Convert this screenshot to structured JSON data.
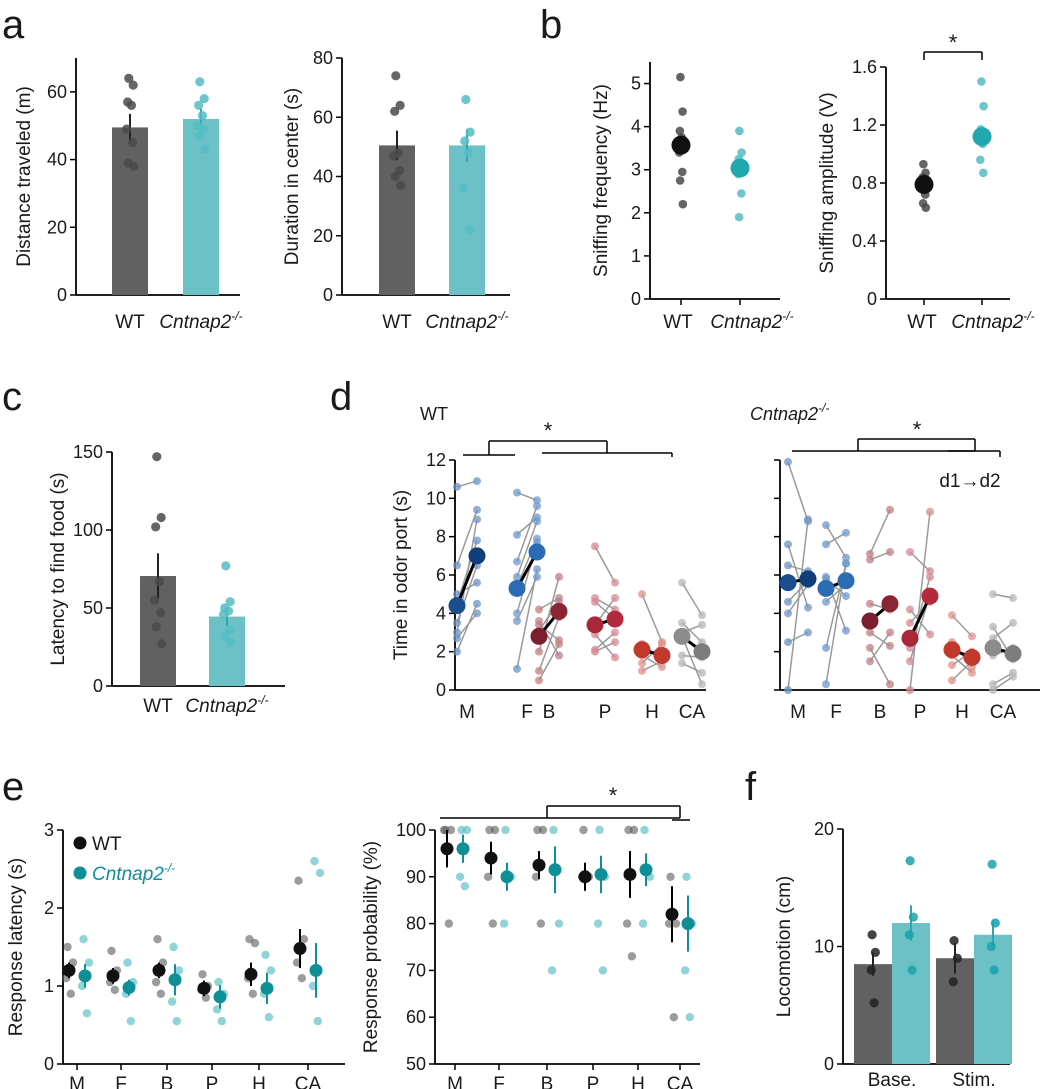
{
  "colors": {
    "wt": "#616161",
    "wt_dot": "#4a4a4a",
    "ko": "#6cc1c6",
    "ko_dot": "#55bcc3",
    "teal": "#0f8f96",
    "black": "#111111",
    "odor": {
      "M": {
        "d1": "#1a4e8c",
        "d2": "#0f3e7a",
        "light": "#6f93c4"
      },
      "F": {
        "d1": "#2a6bb3",
        "d2": "#2a6bb3",
        "light": "#6f98cc"
      },
      "B": {
        "d1": "#7a1f2e",
        "d2": "#8a2433",
        "light": "#c27d86"
      },
      "P": {
        "d1": "#a8283a",
        "d2": "#b12b3d",
        "light": "#d48a92"
      },
      "H": {
        "d1": "#c0392b",
        "d2": "#c0392b",
        "light": "#e0918a"
      },
      "CA": {
        "d1": "#8c8c8c",
        "d2": "#7d7d7d",
        "light": "#b7b7b7"
      }
    }
  },
  "panel_labels": {
    "a": "a",
    "b": "b",
    "c": "c",
    "d": "d",
    "e": "e",
    "f": "f"
  },
  "groups": {
    "wt": "WT",
    "ko_base": "Cntnap2",
    "ko_sup": "-/-"
  },
  "chart_data": [
    {
      "id": "a1",
      "type": "bar",
      "ylabel": "Distance traveled (m)",
      "ylim": [
        0,
        70
      ],
      "yticks": [
        "0",
        "20",
        "40",
        "60"
      ],
      "categories": [
        "WT",
        "Cntnap2-/-"
      ],
      "values": [
        49.5,
        52
      ],
      "sem": [
        4,
        3
      ],
      "points": [
        [
          64,
          62,
          57,
          56,
          49,
          45,
          39,
          38
        ],
        [
          63,
          58,
          56,
          53,
          50,
          49,
          47,
          43
        ]
      ]
    },
    {
      "id": "a2",
      "type": "bar",
      "ylabel": "Duration in center (s)",
      "ylim": [
        0,
        80
      ],
      "yticks": [
        "0",
        "20",
        "40",
        "60",
        "80"
      ],
      "categories": [
        "WT",
        "Cntnap2-/-"
      ],
      "values": [
        50.5,
        50.5
      ],
      "sem": [
        5,
        5.5
      ],
      "points": [
        [
          74,
          64,
          62,
          48,
          47,
          42,
          40,
          37
        ],
        [
          66,
          55,
          52,
          48,
          36,
          22
        ]
      ]
    },
    {
      "id": "b1",
      "type": "scatter",
      "ylabel": "Sniffing frequency (Hz)",
      "ylim": [
        0,
        5.5
      ],
      "yticks": [
        "0",
        "1",
        "2",
        "3",
        "4",
        "5"
      ],
      "categories": [
        "WT",
        "Cntnap2-/-"
      ],
      "means": [
        3.57,
        3.04
      ],
      "points": [
        [
          5.15,
          4.35,
          3.9,
          3.75,
          3.4,
          2.95,
          2.75,
          2.2
        ],
        [
          3.9,
          3.4,
          3.25,
          3.05,
          2.9,
          2.45,
          1.9
        ]
      ]
    },
    {
      "id": "b2",
      "type": "scatter",
      "ylabel": "Sniffing amplitude (V)",
      "ylim": [
        0,
        1.6
      ],
      "yticks": [
        "0",
        "0.4",
        "0.8",
        "1.2",
        "1.6"
      ],
      "categories": [
        "WT",
        "Cntnap2-/-"
      ],
      "means": [
        0.79,
        1.12
      ],
      "points": [
        [
          0.93,
          0.87,
          0.84,
          0.79,
          0.77,
          0.72,
          0.66,
          0.63
        ],
        [
          1.5,
          1.33,
          1.17,
          1.07,
          0.96,
          0.87
        ]
      ],
      "significance": "*"
    },
    {
      "id": "c",
      "type": "bar",
      "ylabel": "Latency to find food (s)",
      "ylim": [
        0,
        150
      ],
      "yticks": [
        "0",
        "50",
        "100",
        "150"
      ],
      "categories": [
        "WT",
        "Cntnap2-/-"
      ],
      "values": [
        70.5,
        44.5
      ],
      "sem": [
        14.5,
        6
      ],
      "points": [
        [
          147,
          108,
          102,
          67,
          55,
          47,
          38,
          27
        ],
        [
          77,
          54,
          50,
          48,
          46,
          36,
          32,
          28
        ]
      ]
    },
    {
      "id": "d1",
      "type": "scatter",
      "subtitle": "WT",
      "ylabel": "Time in odor port (s)",
      "ylim": [
        0,
        12
      ],
      "yticks": [
        "0",
        "2",
        "4",
        "6",
        "8",
        "10",
        "12"
      ],
      "categories": [
        "M",
        "F",
        "B",
        "P",
        "H",
        "CA"
      ],
      "series": [
        {
          "name": "d1",
          "values": [
            4.4,
            5.3,
            2.8,
            3.4,
            2.1,
            2.8
          ]
        },
        {
          "name": "d2",
          "values": [
            7.0,
            7.2,
            4.1,
            3.7,
            1.8,
            2.0
          ]
        }
      ],
      "pairs": [
        [
          [
            10.6,
            10.9
          ],
          [
            2.0,
            4.5
          ],
          [
            3.0,
            8.9
          ],
          [
            3.5,
            6.5
          ],
          [
            6.5,
            9.4
          ],
          [
            4.5,
            7.8
          ],
          [
            2.7,
            4.0
          ],
          [
            5.0,
            5.6
          ]
        ],
        [
          [
            10.3,
            9.9
          ],
          [
            1.1,
            6.3
          ],
          [
            4.0,
            7.7
          ],
          [
            6.7,
            9.6
          ],
          [
            5.4,
            7.9
          ],
          [
            8.1,
            9.0
          ],
          [
            3.6,
            5.9
          ],
          [
            5.9,
            8.8
          ]
        ],
        [
          [
            2.0,
            5.9
          ],
          [
            1.0,
            3.8
          ],
          [
            3.1,
            4.6
          ],
          [
            3.4,
            2.6
          ],
          [
            4.2,
            4.8
          ],
          [
            0.5,
            2.4
          ],
          [
            3.6,
            1.8
          ]
        ],
        [
          [
            7.5,
            5.6
          ],
          [
            4.8,
            4.2
          ],
          [
            3.4,
            4.8
          ],
          [
            2.1,
            3.0
          ],
          [
            2.9,
            1.7
          ],
          [
            4.6,
            3.7
          ],
          [
            2.0,
            2.5
          ]
        ],
        [
          [
            5.0,
            2.5
          ],
          [
            2.0,
            1.8
          ],
          [
            1.8,
            1.2
          ],
          [
            2.4,
            1.6
          ],
          [
            1.4,
            2.4
          ],
          [
            1.0,
            1.5
          ]
        ],
        [
          [
            5.6,
            3.9
          ],
          [
            3.5,
            2.5
          ],
          [
            2.8,
            0.3
          ],
          [
            1.4,
            0.9
          ],
          [
            3.0,
            3.4
          ],
          [
            2.6,
            2.2
          ],
          [
            1.8,
            1.7
          ]
        ]
      ],
      "significance": "*"
    },
    {
      "id": "d2",
      "type": "scatter",
      "subtitle": "Cntnap2-/-",
      "ylabel": "",
      "ylim": [
        0,
        12
      ],
      "categories": [
        "M",
        "F",
        "B",
        "P",
        "H",
        "CA"
      ],
      "annotation": "d1→d2",
      "series": [
        {
          "name": "d1",
          "values": [
            5.6,
            5.3,
            3.6,
            2.7,
            2.1,
            2.2
          ]
        },
        {
          "name": "d2",
          "values": [
            5.8,
            5.7,
            4.5,
            4.9,
            1.7,
            1.9
          ]
        }
      ],
      "pairs": [
        [
          [
            11.9,
            8.8
          ],
          [
            0.0,
            8.9
          ],
          [
            4.0,
            5.5
          ],
          [
            6.5,
            6.2
          ],
          [
            7.6,
            4.3
          ],
          [
            4.6,
            5.7
          ],
          [
            2.5,
            3.0
          ]
        ],
        [
          [
            8.6,
            6.9
          ],
          [
            0.3,
            6.6
          ],
          [
            4.6,
            5.5
          ],
          [
            7.6,
            8.2
          ],
          [
            2.2,
            6.6
          ],
          [
            5.9,
            3.1
          ],
          [
            5.8,
            4.9
          ]
        ],
        [
          [
            7.1,
            9.4
          ],
          [
            2.2,
            0.3
          ],
          [
            4.5,
            4.2
          ],
          [
            6.8,
            7.2
          ],
          [
            1.5,
            3.0
          ],
          [
            3.0,
            2.3
          ]
        ],
        [
          [
            7.2,
            6.2
          ],
          [
            0.0,
            9.3
          ],
          [
            3.5,
            4.6
          ],
          [
            1.5,
            5.0
          ],
          [
            4.2,
            2.9
          ],
          [
            2.2,
            5.9
          ]
        ],
        [
          [
            3.9,
            2.8
          ],
          [
            1.8,
            0.9
          ],
          [
            2.5,
            1.2
          ],
          [
            1.3,
            2.0
          ],
          [
            0.5,
            1.5
          ]
        ],
        [
          [
            5.0,
            4.8
          ],
          [
            2.7,
            3.5
          ],
          [
            0.3,
            0.9
          ],
          [
            3.3,
            1.6
          ],
          [
            1.8,
            2.2
          ],
          [
            0.0,
            0.7
          ]
        ]
      ],
      "significance": "*"
    },
    {
      "id": "e1",
      "type": "scatter",
      "ylabel": "Response latency (s)",
      "ylim": [
        0,
        3
      ],
      "yticks": [
        "0",
        "1",
        "2",
        "3"
      ],
      "categories": [
        "M",
        "F",
        "B",
        "P",
        "H",
        "CA"
      ],
      "legend": [
        "WT",
        "Cntnap2-/-"
      ],
      "series": [
        {
          "name": "WT",
          "values": [
            1.2,
            1.13,
            1.2,
            0.97,
            1.15,
            1.48
          ],
          "sem": [
            0.1,
            0.1,
            0.1,
            0.1,
            0.15,
            0.25
          ]
        },
        {
          "name": "Cntnap2-/-",
          "values": [
            1.13,
            0.98,
            1.08,
            0.86,
            0.97,
            1.2
          ],
          "sem": [
            0.15,
            0.1,
            0.2,
            0.15,
            0.2,
            0.35
          ]
        }
      ],
      "points": [
        [
          [
            1.5,
            1.3,
            1.1,
            0.9
          ],
          [
            1.45,
            1.2,
            1.05,
            0.95
          ],
          [
            1.6,
            1.3,
            1.05,
            0.9
          ],
          [
            1.15,
            1.0,
            0.95,
            0.85
          ],
          [
            1.6,
            1.55,
            1.1,
            0.9
          ],
          [
            2.35,
            1.6,
            1.3,
            1.1
          ]
        ],
        [
          [
            1.6,
            1.3,
            1.0,
            0.65
          ],
          [
            1.3,
            1.05,
            0.9,
            0.55
          ],
          [
            1.5,
            1.2,
            0.8,
            0.55
          ],
          [
            1.05,
            0.9,
            0.7,
            0.55
          ],
          [
            1.4,
            1.2,
            0.9,
            0.6
          ],
          [
            2.6,
            2.45,
            1.0,
            0.55
          ]
        ]
      ]
    },
    {
      "id": "e2",
      "type": "scatter",
      "ylabel": "Response probability (%)",
      "ylim": [
        50,
        100
      ],
      "yticks": [
        "50",
        "60",
        "70",
        "80",
        "90",
        "100"
      ],
      "categories": [
        "M",
        "F",
        "B",
        "P",
        "H",
        "CA"
      ],
      "series": [
        {
          "name": "WT",
          "values": [
            96,
            94,
            92.5,
            90,
            90.5,
            82
          ],
          "sem": [
            4,
            3.5,
            3,
            3,
            5,
            6
          ]
        },
        {
          "name": "Cntnap2-/-",
          "values": [
            96,
            90,
            91.5,
            90.5,
            91.5,
            80
          ],
          "sem": [
            3,
            3,
            5,
            4,
            3.5,
            6
          ]
        }
      ],
      "points": [
        [
          [
            100,
            100,
            100,
            80
          ],
          [
            100,
            100,
            90,
            80
          ],
          [
            100,
            100,
            90,
            80
          ],
          [
            100,
            90,
            90
          ],
          [
            100,
            100,
            80,
            73
          ],
          [
            90,
            80,
            80,
            60
          ]
        ],
        [
          [
            100,
            100,
            90,
            88
          ],
          [
            100,
            90,
            80
          ],
          [
            100,
            80,
            70
          ],
          [
            100,
            90,
            80,
            70
          ],
          [
            100,
            90,
            80
          ],
          [
            90,
            80,
            70,
            60
          ]
        ]
      ],
      "significance": "*"
    },
    {
      "id": "f",
      "type": "bar",
      "ylabel": "Locomotion (cm)",
      "ylim": [
        0,
        20
      ],
      "yticks": [
        "0",
        "10",
        "20"
      ],
      "categories": [
        "Base.",
        "Stim."
      ],
      "series": [
        {
          "name": "WT",
          "values": [
            8.5,
            9
          ],
          "sem": [
            1,
            1.3
          ]
        },
        {
          "name": "Cntnap2-/-",
          "values": [
            12,
            11
          ],
          "sem": [
            1.5,
            1.2
          ]
        }
      ],
      "points": [
        [
          [
            11,
            9.5,
            8,
            5.2
          ],
          [
            10.5,
            9,
            7
          ]
        ],
        [
          [
            17.3,
            12.5,
            11,
            8
          ],
          [
            17,
            12,
            10,
            8
          ]
        ]
      ]
    }
  ]
}
